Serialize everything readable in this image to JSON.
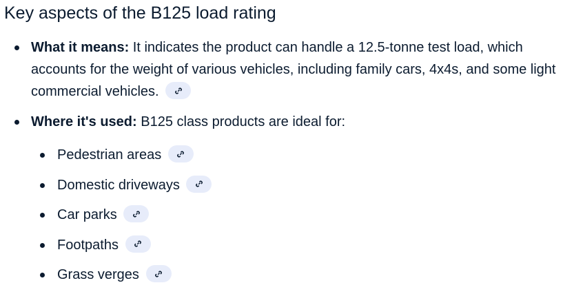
{
  "heading": "Key aspects of the B125 load rating",
  "items": [
    {
      "label": "What it means:",
      "text": " It indicates the product can handle a 12.5-tonne test load, which accounts for the weight of various vehicles, including family cars, 4x4s, and some light commercial vehicles."
    },
    {
      "label": "Where it's used:",
      "text": " B125 class products are ideal for:"
    }
  ],
  "uses": [
    "Pedestrian areas",
    "Domestic driveways",
    "Car parks",
    "Footpaths",
    "Grass verges"
  ],
  "colors": {
    "text": "#0b1b2f",
    "chip_bg": "#e7ecfa"
  },
  "icons": {
    "chip": "link-icon"
  }
}
